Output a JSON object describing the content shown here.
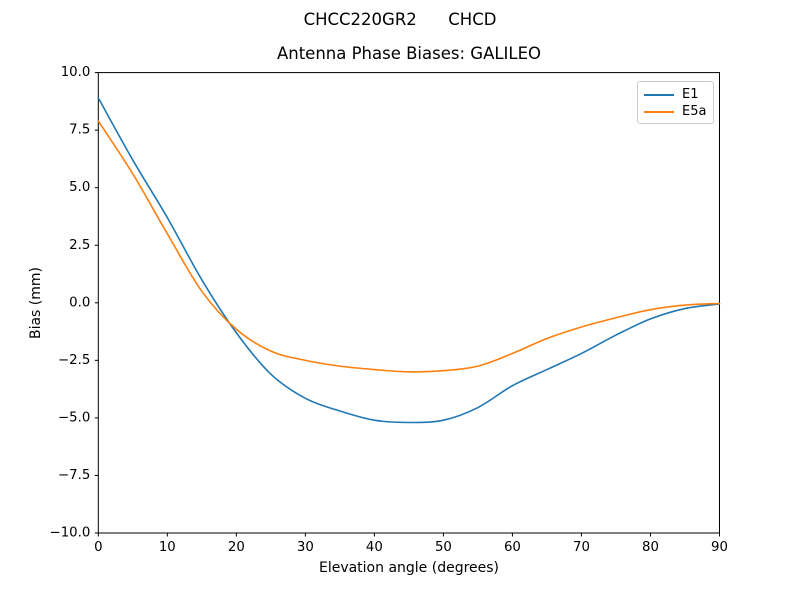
{
  "figure": {
    "suptitle": "CHCC220GR2      CHCD",
    "title": "Antenna Phase Biases: GALILEO"
  },
  "chart_data": {
    "type": "line",
    "suptitle": "CHCC220GR2      CHCD",
    "title": "Antenna Phase Biases: GALILEO",
    "xlabel": "Elevation angle (degrees)",
    "ylabel": "Bias (mm)",
    "xlim": [
      0,
      90
    ],
    "ylim": [
      -10,
      10
    ],
    "grid": false,
    "legend": {
      "position": "upper right"
    },
    "xticks": {
      "values": [
        0,
        10,
        20,
        30,
        40,
        50,
        60,
        70,
        80,
        90
      ],
      "labels": [
        "0",
        "10",
        "20",
        "30",
        "40",
        "50",
        "60",
        "70",
        "80",
        "90"
      ]
    },
    "yticks": {
      "values": [
        10,
        7.5,
        5,
        2.5,
        0,
        -2.5,
        -5,
        -7.5,
        -10
      ],
      "labels": [
        "10.0",
        "7.5",
        "5.0",
        "2.5",
        "0.0",
        "−2.5",
        "−5.0",
        "−7.5",
        "−10.0"
      ]
    },
    "x": [
      0,
      5,
      10,
      15,
      20,
      25,
      30,
      35,
      40,
      45,
      50,
      55,
      60,
      65,
      70,
      75,
      80,
      85,
      90
    ],
    "series": [
      {
        "name": "E1",
        "color": "#1f77b4",
        "values": [
          8.9,
          6.2,
          3.7,
          1.0,
          -1.3,
          -3.1,
          -4.15,
          -4.7,
          -5.1,
          -5.2,
          -5.1,
          -4.55,
          -3.6,
          -2.9,
          -2.2,
          -1.4,
          -0.7,
          -0.25,
          -0.05
        ]
      },
      {
        "name": "E5a",
        "color": "#ff7f0e",
        "values": [
          7.9,
          5.6,
          3.0,
          0.5,
          -1.15,
          -2.1,
          -2.5,
          -2.75,
          -2.9,
          -3.0,
          -2.95,
          -2.75,
          -2.2,
          -1.55,
          -1.05,
          -0.65,
          -0.3,
          -0.1,
          -0.03
        ]
      }
    ]
  },
  "colors": {
    "axes": "#000000",
    "background": "#ffffff",
    "legend_border": "#cccccc"
  }
}
